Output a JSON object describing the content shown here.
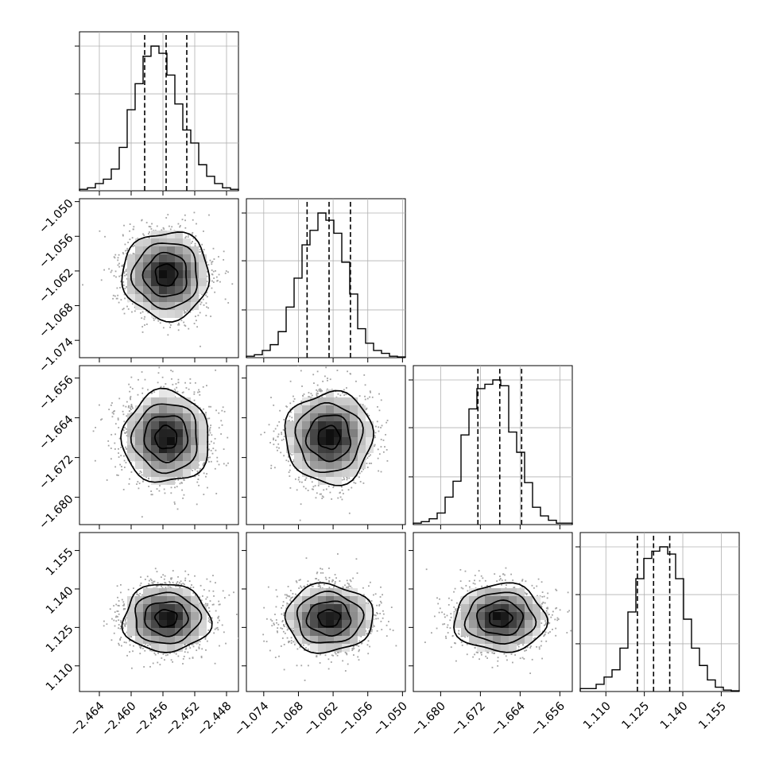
{
  "chart_data": {
    "type": "corner",
    "n_params": 4,
    "params": [
      {
        "range": [
          -2.4665,
          -2.4465
        ],
        "ticks": [
          -2.464,
          -2.46,
          -2.456,
          -2.452,
          -2.448
        ],
        "tick_labels": [
          "−2.464",
          "−2.460",
          "−2.456",
          "−2.452",
          "−2.448"
        ],
        "quantiles": [
          -2.4583,
          -2.4556,
          -2.453
        ],
        "mean": -2.4556,
        "std": 0.0026,
        "hist_counts": [
          0.01,
          0.02,
          0.05,
          0.08,
          0.15,
          0.3,
          0.56,
          0.74,
          0.93,
          1.0,
          0.95,
          0.8,
          0.6,
          0.42,
          0.33,
          0.18,
          0.1,
          0.05,
          0.02,
          0.01
        ]
      },
      {
        "range": [
          -1.077,
          -1.0495
        ],
        "ticks": [
          -1.074,
          -1.068,
          -1.062,
          -1.056,
          -1.05
        ],
        "tick_labels": [
          "−1.074",
          "−1.068",
          "−1.062",
          "−1.056",
          "−1.050"
        ],
        "quantiles": [
          -1.0665,
          -1.0627,
          -1.059
        ],
        "mean": -1.0627,
        "std": 0.0036,
        "hist_counts": [
          0.01,
          0.02,
          0.05,
          0.09,
          0.18,
          0.35,
          0.55,
          0.78,
          0.88,
          1.0,
          0.95,
          0.86,
          0.66,
          0.44,
          0.2,
          0.1,
          0.05,
          0.03,
          0.01,
          0.005
        ]
      },
      {
        "range": [
          -1.6855,
          -1.6535
        ],
        "ticks": [
          -1.68,
          -1.672,
          -1.664,
          -1.656
        ],
        "tick_labels": [
          "−1.680",
          "−1.672",
          "−1.664",
          "−1.656"
        ],
        "quantiles": [
          -1.6725,
          -1.6681,
          -1.6637
        ],
        "mean": -1.668,
        "std": 0.0044,
        "hist_counts": [
          0.01,
          0.02,
          0.04,
          0.08,
          0.19,
          0.3,
          0.62,
          0.8,
          0.94,
          0.97,
          1.0,
          0.96,
          0.64,
          0.5,
          0.29,
          0.12,
          0.06,
          0.03,
          0.01,
          0.01
        ]
      },
      {
        "range": [
          1.1,
          1.162
        ],
        "ticks": [
          1.11,
          1.125,
          1.14,
          1.155
        ],
        "tick_labels": [
          "1.110",
          "1.125",
          "1.140",
          "1.155"
        ],
        "quantiles": [
          1.1223,
          1.1286,
          1.1349
        ],
        "mean": 1.1286,
        "std": 0.0063,
        "hist_counts": [
          0.02,
          0.02,
          0.05,
          0.1,
          0.15,
          0.3,
          0.55,
          0.78,
          0.92,
          0.97,
          1.0,
          0.95,
          0.78,
          0.5,
          0.3,
          0.18,
          0.08,
          0.03,
          0.01,
          0.005
        ]
      }
    ],
    "histogram_ylabel_ticks": [
      0.33,
      0.67,
      1.0
    ],
    "contour_levels_sigma": [
      0.5,
      1.0,
      1.5,
      2.0
    ],
    "n_samples_drawn_per_panel": 2000,
    "grid": true,
    "colors": {
      "line": "#000000",
      "density": "#000000",
      "points": "#a3a3a3",
      "grid": "#b0b0b0"
    }
  }
}
